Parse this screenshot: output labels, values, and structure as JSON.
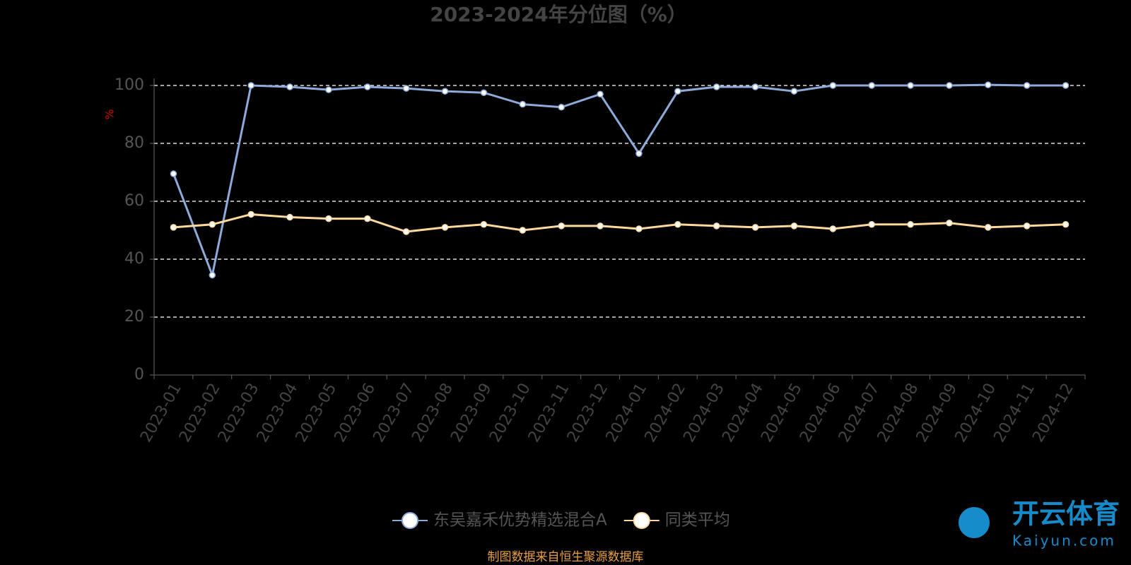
{
  "chart_data": {
    "type": "line",
    "title": "2023-2024年分位图（%）",
    "y_label": "%",
    "categories": [
      "2023-01",
      "2023-02",
      "2023-03",
      "2023-04",
      "2023-05",
      "2023-06",
      "2023-07",
      "2023-08",
      "2023-09",
      "2023-10",
      "2023-11",
      "2023-12",
      "2024-01",
      "2024-02",
      "2024-03",
      "2024-04",
      "2024-05",
      "2024-06",
      "2024-07",
      "2024-08",
      "2024-09",
      "2024-10",
      "2024-11",
      "2024-12"
    ],
    "series": [
      {
        "name": "东吴嘉禾优势精选混合A",
        "color": "#8eaadb",
        "values": [
          69.5,
          34.5,
          100,
          99.5,
          98.5,
          99.5,
          99,
          98,
          97.5,
          93.5,
          92.5,
          97,
          76.5,
          98,
          99.5,
          99.5,
          98,
          100,
          100,
          100,
          100,
          100.2,
          100,
          100
        ]
      },
      {
        "name": "同类平均",
        "color": "#fcd89c",
        "values": [
          51,
          52,
          55.5,
          54.5,
          54,
          54,
          49.5,
          51,
          52,
          50,
          51.5,
          51.5,
          50.5,
          52,
          51.5,
          51,
          51.5,
          50.5,
          52,
          52,
          52.5,
          51,
          51.5,
          52
        ]
      }
    ],
    "ylim": [
      0,
      100
    ],
    "yticks": [
      0,
      20,
      40,
      60,
      80,
      100
    ],
    "grid": true,
    "legend": "bottom",
    "source": "制图数据来自恒生聚源数据库",
    "watermark": {
      "name": "开云体育",
      "site": "Kaiyun.com"
    }
  }
}
